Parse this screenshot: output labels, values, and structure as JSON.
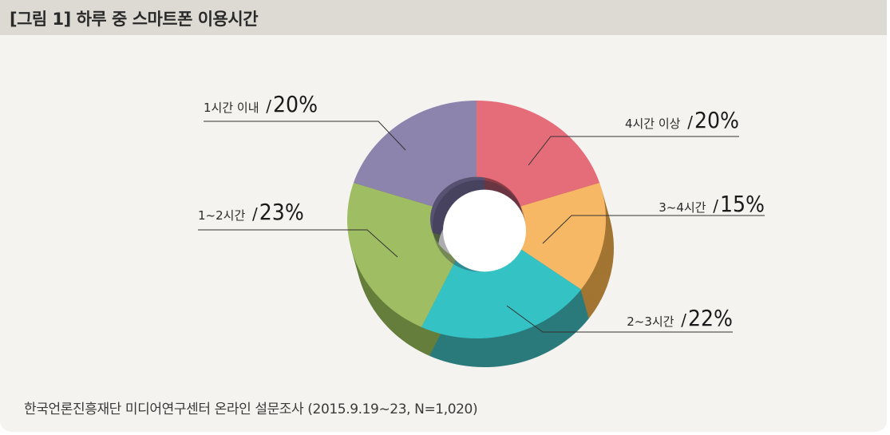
{
  "figure": {
    "title": "[그림 1]  하루 중 스마트폰 이용시간",
    "source": "한국언론진흥재단 미디어연구센터 온라인 설문조사 (2015.9.19~23, N=1,020)"
  },
  "chart_data": {
    "type": "pie",
    "style": "3d-donut",
    "title": "[그림 1]  하루 중 스마트폰 이용시간",
    "slices": [
      {
        "label": "4시간 이상",
        "value": 20,
        "display": "20%",
        "color": "#e56d79",
        "side_color": "#8d3d47"
      },
      {
        "label": "3~4시간",
        "value": 15,
        "display": "15%",
        "color": "#f7b866",
        "side_color": "#a27533"
      },
      {
        "label": "2~3시간",
        "value": 22,
        "display": "22%",
        "color": "#34c2c4",
        "side_color": "#2a7a7c"
      },
      {
        "label": "1~2시간",
        "value": 23,
        "display": "23%",
        "color": "#9fbd62",
        "side_color": "#667e3c"
      },
      {
        "label": "1시간 이내",
        "value": 20,
        "display": "20%",
        "color": "#8c84ad",
        "side_color": "#585272"
      }
    ]
  }
}
